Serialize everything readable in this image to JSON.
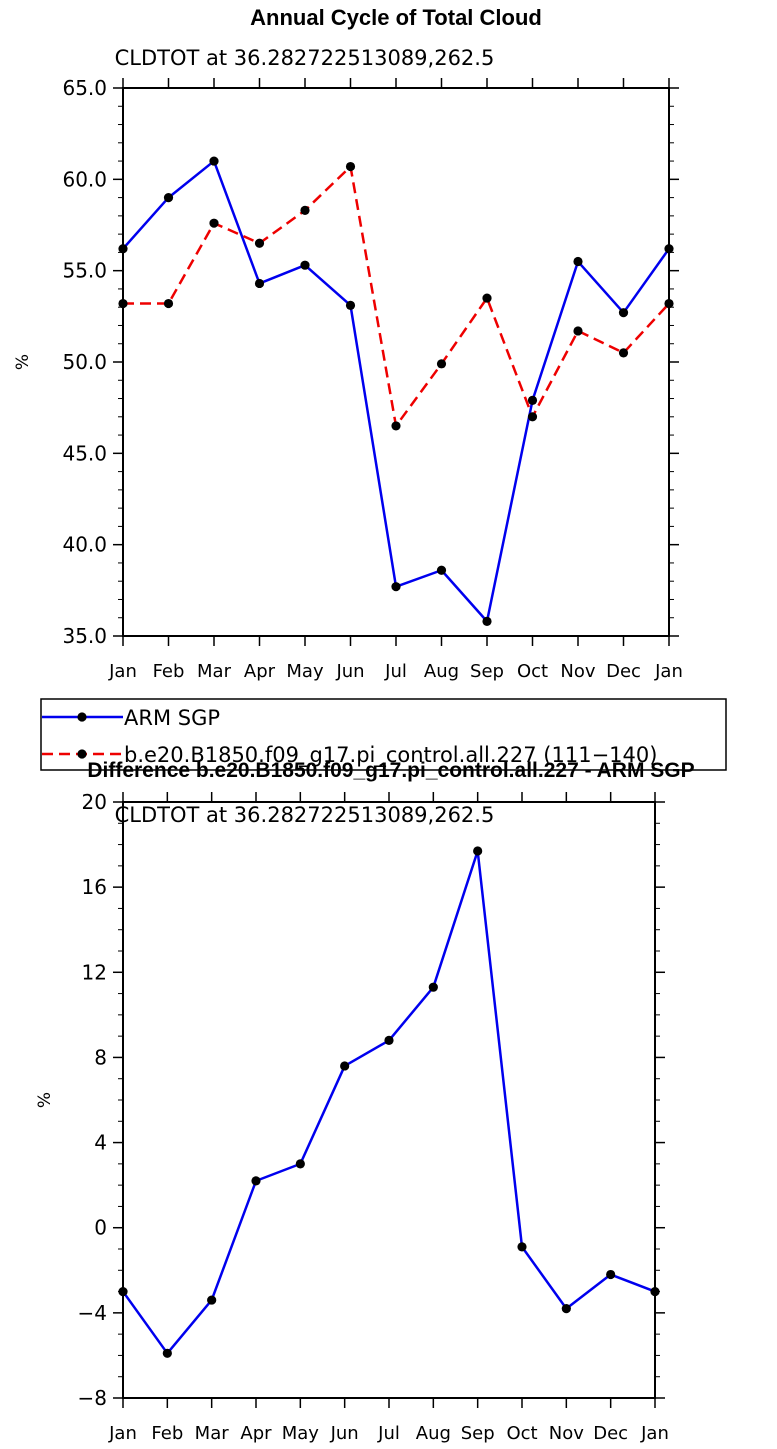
{
  "chart_data": [
    {
      "type": "line",
      "title": "Annual Cycle of Total Cloud",
      "subtitle": "CLDTOT at 36.282722513089,262.5",
      "xlabel": "",
      "ylabel": "%",
      "categories": [
        "Jan",
        "Feb",
        "Mar",
        "Apr",
        "May",
        "Jun",
        "Jul",
        "Aug",
        "Sep",
        "Oct",
        "Nov",
        "Dec",
        "Jan"
      ],
      "ylim": [
        35.0,
        65.0
      ],
      "yticks": [
        "35.0",
        "40.0",
        "45.0",
        "50.0",
        "55.0",
        "60.0",
        "65.0"
      ],
      "series": [
        {
          "name": "ARM SGP",
          "color": "#0000ee",
          "dash": "solid",
          "values": [
            56.2,
            59.0,
            61.0,
            54.3,
            55.3,
            53.1,
            37.7,
            38.6,
            35.8,
            47.9,
            55.5,
            52.7,
            56.2
          ]
        },
        {
          "name": "b.e20.B1850.f09_g17.pi_control.all.227 (111−140)",
          "color": "#ee0000",
          "dash": "dashed",
          "values": [
            53.2,
            53.2,
            57.6,
            56.5,
            58.3,
            60.7,
            46.5,
            49.9,
            53.5,
            47.0,
            51.7,
            50.5,
            53.2
          ]
        }
      ]
    },
    {
      "type": "line",
      "title": "Difference b.e20.B1850.f09_g17.pi_control.all.227 - ARM SGP",
      "subtitle": "CLDTOT at 36.282722513089,262.5",
      "xlabel": "",
      "ylabel": "%",
      "categories": [
        "Jan",
        "Feb",
        "Mar",
        "Apr",
        "May",
        "Jun",
        "Jul",
        "Aug",
        "Sep",
        "Oct",
        "Nov",
        "Dec",
        "Jan"
      ],
      "ylim": [
        -8,
        20
      ],
      "yticks": [
        "−8",
        "−4",
        "0",
        "4",
        "8",
        "12",
        "16",
        "20"
      ],
      "series": [
        {
          "color": "#0000ee",
          "dash": "solid",
          "values": [
            -3.0,
            -5.9,
            -3.4,
            2.2,
            3.0,
            7.6,
            8.8,
            11.3,
            17.7,
            -0.9,
            -3.8,
            -2.2,
            -3.0
          ]
        }
      ]
    }
  ]
}
